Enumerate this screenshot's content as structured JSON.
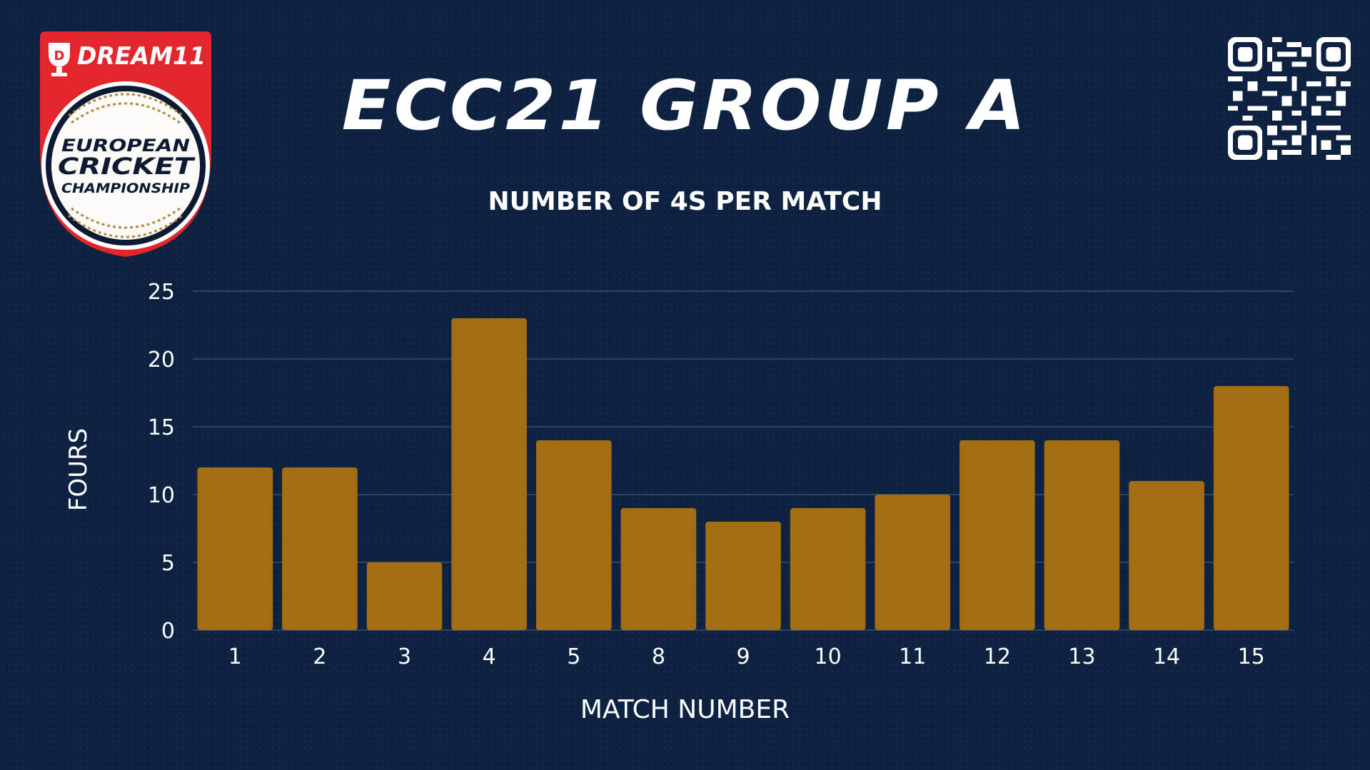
{
  "header": {
    "title": "ECC21 GROUP A",
    "sponsor_logo_text": "DREAM11",
    "badge_lines": [
      "EUROPEAN",
      "CRICKET",
      "CHAMPIONSHIP"
    ],
    "qr_icon": "qr-code-icon"
  },
  "colors": {
    "background": "#0c2240",
    "bar": "#a46d13",
    "text": "#ffffff",
    "gridline": "#3a5070",
    "badge_red": "#e3262b",
    "ball_gold": "#b48a3e"
  },
  "chart_data": {
    "type": "bar",
    "title": "NUMBER OF 4S PER MATCH",
    "xlabel": "MATCH NUMBER",
    "ylabel": "FOURS",
    "categories": [
      "1",
      "2",
      "3",
      "4",
      "5",
      "8",
      "9",
      "10",
      "11",
      "12",
      "13",
      "14",
      "15"
    ],
    "values": [
      12,
      12,
      5,
      23,
      14,
      9,
      8,
      9,
      10,
      14,
      14,
      11,
      18
    ],
    "ylim": [
      0,
      25
    ],
    "yticks": [
      0,
      5,
      10,
      15,
      20,
      25
    ],
    "grid": true,
    "legend": "none"
  }
}
